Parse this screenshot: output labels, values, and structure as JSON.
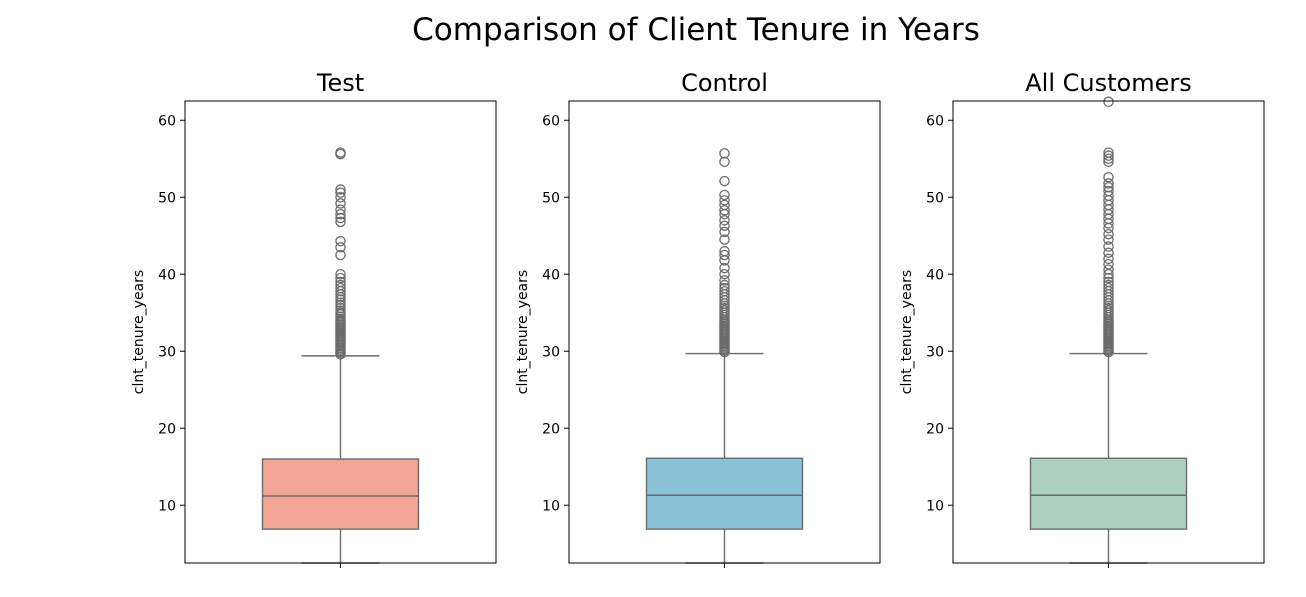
{
  "chart_data": {
    "type": "box",
    "title": "Comparison of Client Tenure in Years",
    "ylim": [
      2.5,
      62.5
    ],
    "yticks": [
      10,
      20,
      30,
      40,
      50,
      60
    ],
    "grid": false,
    "panels": [
      {
        "title": "Test",
        "ylabel": "clnt_tenure_years",
        "color": "#F2A595",
        "box": {
          "whislo": 2.5,
          "q1": 6.9,
          "median": 11.2,
          "q3": 16.0,
          "whishi": 29.4
        },
        "outliers": [
          29.6,
          29.8,
          30.0,
          30.2,
          30.4,
          30.6,
          30.8,
          31.0,
          31.2,
          31.4,
          31.6,
          31.8,
          32.0,
          32.2,
          32.4,
          32.6,
          32.8,
          33.0,
          33.2,
          33.4,
          33.6,
          33.8,
          34.0,
          34.2,
          34.5,
          34.8,
          35.0,
          35.3,
          35.6,
          36.0,
          36.3,
          36.7,
          37.0,
          37.4,
          37.8,
          38.2,
          38.6,
          39.0,
          39.5,
          40.0,
          42.5,
          43.5,
          44.3,
          46.8,
          47.3,
          47.8,
          48.4,
          49.2,
          50.0,
          50.6,
          51.0,
          55.6,
          55.8
        ]
      },
      {
        "title": "Control",
        "ylabel": "clnt_tenure_years",
        "color": "#8AC2DA",
        "box": {
          "whislo": 2.5,
          "q1": 6.9,
          "median": 11.3,
          "q3": 16.1,
          "whishi": 29.7
        },
        "outliers": [
          29.9,
          30.1,
          30.3,
          30.5,
          30.7,
          30.9,
          31.1,
          31.3,
          31.5,
          31.7,
          31.9,
          32.1,
          32.3,
          32.5,
          32.7,
          32.9,
          33.1,
          33.3,
          33.5,
          33.7,
          33.9,
          34.1,
          34.4,
          34.7,
          35.0,
          35.3,
          35.6,
          35.9,
          36.2,
          36.6,
          37.0,
          37.4,
          37.8,
          38.2,
          38.6,
          39.2,
          40.0,
          40.8,
          41.8,
          42.5,
          43.0,
          44.5,
          45.5,
          46.3,
          47.0,
          47.8,
          48.3,
          49.0,
          49.6,
          50.3,
          52.1,
          54.6,
          55.7
        ]
      },
      {
        "title": "All Customers",
        "ylabel": "clnt_tenure_years",
        "color": "#ABD1BC",
        "box": {
          "whislo": 2.5,
          "q1": 6.9,
          "median": 11.3,
          "q3": 16.1,
          "whishi": 29.7
        },
        "outliers": [
          29.9,
          30.1,
          30.3,
          30.5,
          30.7,
          30.9,
          31.1,
          31.3,
          31.5,
          31.7,
          31.9,
          32.1,
          32.3,
          32.5,
          32.7,
          32.9,
          33.1,
          33.3,
          33.5,
          33.7,
          33.9,
          34.1,
          34.4,
          34.7,
          35.0,
          35.3,
          35.6,
          35.9,
          36.2,
          36.6,
          37.0,
          37.4,
          37.8,
          38.2,
          38.6,
          39.0,
          39.5,
          40.0,
          40.6,
          41.3,
          42.0,
          42.8,
          43.6,
          44.5,
          45.2,
          46.0,
          46.6,
          47.2,
          47.8,
          48.4,
          49.0,
          49.6,
          50.2,
          50.8,
          51.3,
          51.8,
          52.6,
          54.6,
          55.0,
          55.4,
          55.8,
          62.4
        ]
      }
    ]
  }
}
